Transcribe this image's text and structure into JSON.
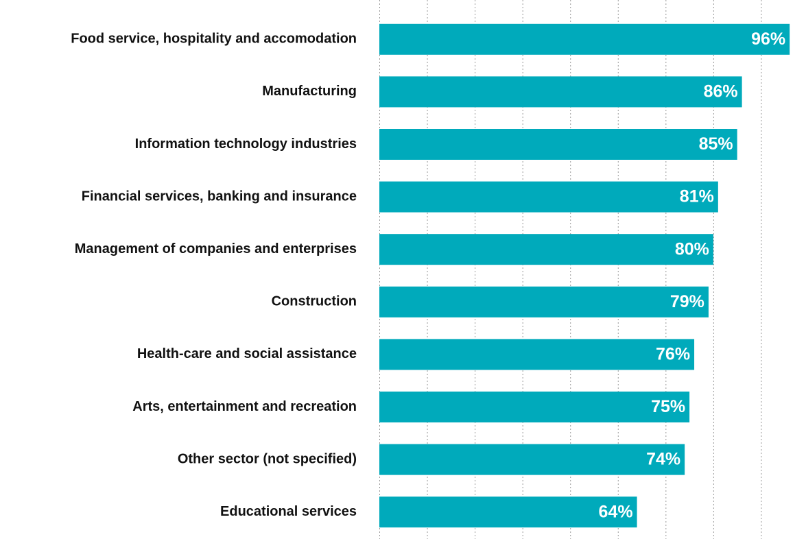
{
  "chart_data": {
    "type": "bar",
    "orientation": "horizontal",
    "categories": [
      "Food service, hospitality and accomodation",
      "Manufacturing",
      "Information technology industries",
      "Financial services, banking and insurance",
      "Management of companies and enterprises",
      "Construction",
      "Health-care and social assistance",
      "Arts, entertainment and recreation",
      "Other sector (not specified)",
      "Educational services"
    ],
    "values": [
      96,
      86,
      85,
      81,
      80,
      79,
      76,
      75,
      74,
      64
    ],
    "value_labels": [
      "96%",
      "86%",
      "85%",
      "81%",
      "80%",
      "79%",
      "76%",
      "75%",
      "74%",
      "64%"
    ],
    "color": "#00aabb",
    "xlim": [
      10,
      100
    ],
    "xticks": [
      10,
      20,
      30,
      40,
      50,
      60,
      70,
      80,
      90
    ],
    "grid": true
  }
}
